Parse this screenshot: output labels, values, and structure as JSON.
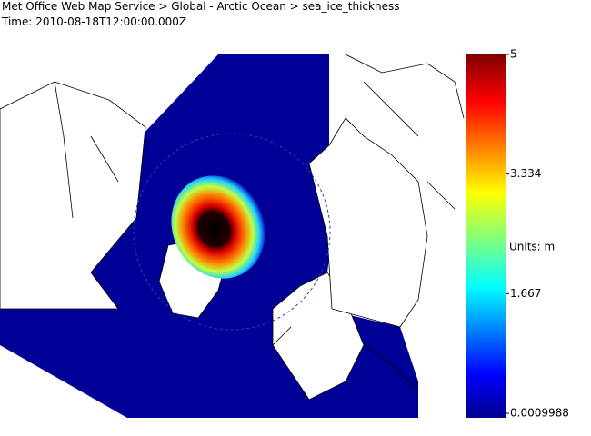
{
  "header": {
    "title": "Met Office Web Map Service > Global - Arctic Ocean > sea_ice_thickness",
    "time": "Time: 2010-08-18T12:00:00.000Z"
  },
  "legend": {
    "max": 5,
    "ticks": [
      3.334,
      1.667
    ],
    "min": 0.0009988,
    "units": "Units: m"
  }
}
